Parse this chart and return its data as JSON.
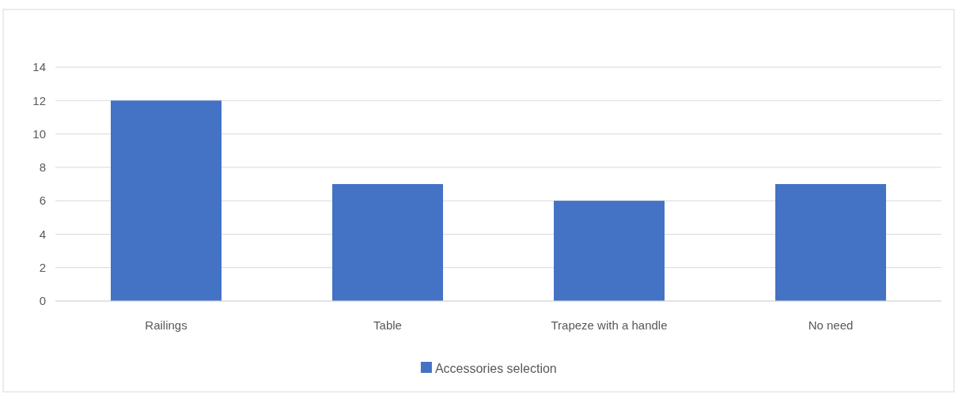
{
  "chart_data": {
    "type": "bar",
    "categories": [
      "Railings",
      "Table",
      "Trapeze with a handle",
      "No need"
    ],
    "series": [
      {
        "name": "Accessories selection",
        "color": "#4472c4",
        "values": [
          12,
          7,
          6,
          7
        ]
      }
    ],
    "ylim": [
      0,
      14
    ],
    "yticks": [
      0,
      2,
      4,
      6,
      8,
      10,
      12,
      14
    ],
    "grid": "y",
    "legend": "bottom"
  }
}
